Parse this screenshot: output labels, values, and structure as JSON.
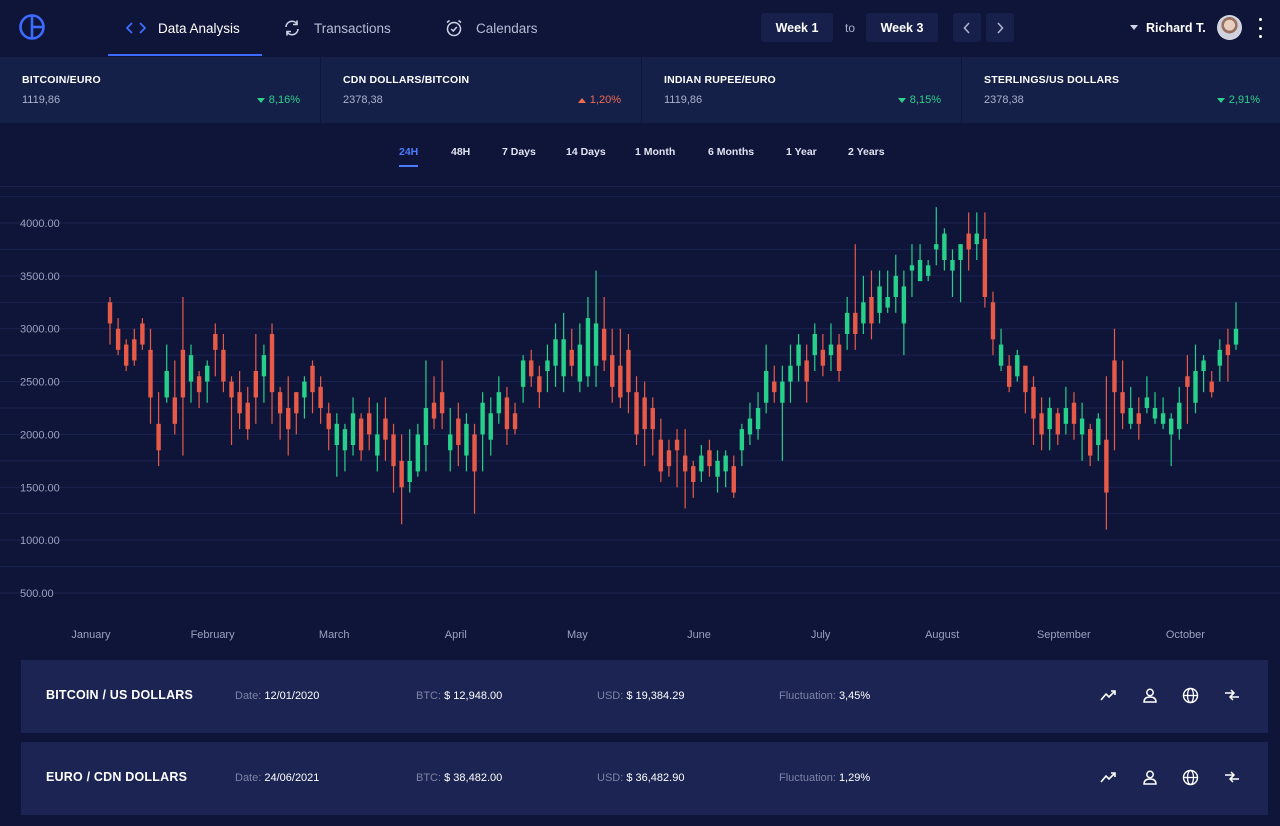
{
  "nav": {
    "tabs": [
      {
        "label": "Data Analysis",
        "icon": "code-icon",
        "active": true
      },
      {
        "label": "Transactions",
        "icon": "refresh-icon",
        "active": false
      },
      {
        "label": "Calendars",
        "icon": "alarm-clock-icon",
        "active": false
      }
    ],
    "week_from": "Week 1",
    "to_label": "to",
    "week_to": "Week 3",
    "user_name": "Richard T."
  },
  "ticker": [
    {
      "pair": "BITCOIN/EURO",
      "value": "1119,86",
      "change": "8,16%",
      "direction": "down",
      "color": "#2ecf8a"
    },
    {
      "pair": "CDN DOLLARS/BITCOIN",
      "value": "2378,38",
      "change": "1,20%",
      "direction": "up",
      "color": "#f06a52"
    },
    {
      "pair": "INDIAN RUPEE/EURO",
      "value": "1119,86",
      "change": "8,15%",
      "direction": "down",
      "color": "#2ecf8a"
    },
    {
      "pair": "STERLINGS/US DOLLARS",
      "value": "2378,38",
      "change": "2,91%",
      "direction": "down",
      "color": "#2ecf8a"
    }
  ],
  "ranges": [
    "24H",
    "48H",
    "7 Days",
    "14 Days",
    "1 Month",
    "6 Months",
    "1 Year",
    "2 Years"
  ],
  "active_range": "24H",
  "chart_data": {
    "type": "candlestick",
    "y_ticks": [
      "4000.00",
      "3500.00",
      "3000.00",
      "2500.00",
      "2000.00",
      "1500.00",
      "1000.00",
      "500.00"
    ],
    "ylim": [
      500,
      4000
    ],
    "x_labels": [
      "January",
      "February",
      "March",
      "April",
      "May",
      "June",
      "July",
      "August",
      "September",
      "October"
    ],
    "up_color": "#26d08a",
    "down_color": "#e85a48",
    "grid": true,
    "candles": [
      [
        3250,
        3050,
        3300,
        2850
      ],
      [
        3000,
        2800,
        3100,
        2750
      ],
      [
        2850,
        2650,
        2900,
        2600
      ],
      [
        2900,
        2700,
        3000,
        2650
      ],
      [
        3050,
        2850,
        3100,
        2800
      ],
      [
        2800,
        2350,
        3000,
        2100
      ],
      [
        2100,
        1850,
        2400,
        1700
      ],
      [
        2350,
        2600,
        2850,
        2300
      ],
      [
        2350,
        2100,
        2700,
        2000
      ],
      [
        2800,
        2350,
        3300,
        1800
      ],
      [
        2500,
        2750,
        2850,
        2300
      ],
      [
        2550,
        2400,
        2600,
        2250
      ],
      [
        2500,
        2650,
        2700,
        2300
      ],
      [
        2950,
        2800,
        3050,
        2550
      ],
      [
        2800,
        2500,
        2950,
        2400
      ],
      [
        2500,
        2350,
        2550,
        1900
      ],
      [
        2400,
        2200,
        2600,
        2050
      ],
      [
        2300,
        2050,
        2450,
        1950
      ],
      [
        2600,
        2350,
        2950,
        2100
      ],
      [
        2550,
        2750,
        2850,
        2300
      ],
      [
        2950,
        2400,
        3050,
        2100
      ],
      [
        2400,
        2200,
        2450,
        1950
      ],
      [
        2250,
        2050,
        2550,
        1800
      ],
      [
        2400,
        2200,
        2400,
        2000
      ],
      [
        2350,
        2500,
        2550,
        2150
      ],
      [
        2650,
        2400,
        2700,
        2200
      ],
      [
        2450,
        2250,
        2550,
        2100
      ],
      [
        2200,
        2050,
        2300,
        1850
      ],
      [
        1900,
        2100,
        2200,
        1600
      ],
      [
        1850,
        2050,
        2100,
        1650
      ],
      [
        1900,
        2200,
        2350,
        1800
      ],
      [
        2150,
        1850,
        2200,
        1750
      ],
      [
        2200,
        2000,
        2350,
        1850
      ],
      [
        1800,
        2000,
        2300,
        1650
      ],
      [
        2150,
        1950,
        2350,
        1750
      ],
      [
        2000,
        1700,
        2100,
        1450
      ],
      [
        1750,
        1500,
        2000,
        1150
      ],
      [
        1550,
        1750,
        2050,
        1450
      ],
      [
        1650,
        2000,
        2100,
        1600
      ],
      [
        1900,
        2250,
        2700,
        1650
      ],
      [
        2300,
        2150,
        2550,
        2050
      ],
      [
        2400,
        2200,
        2700,
        2050
      ],
      [
        1850,
        2000,
        2250,
        1650
      ],
      [
        2150,
        1900,
        2300,
        1700
      ],
      [
        1800,
        2100,
        2200,
        1650
      ],
      [
        2000,
        1650,
        2100,
        1250
      ],
      [
        2000,
        2300,
        2400,
        1650
      ],
      [
        1950,
        2200,
        2350,
        1800
      ],
      [
        2200,
        2400,
        2550,
        2100
      ],
      [
        2350,
        2050,
        2450,
        1900
      ],
      [
        2200,
        2050,
        2300,
        2000
      ],
      [
        2450,
        2700,
        2750,
        2300
      ],
      [
        2700,
        2550,
        2800,
        2450
      ],
      [
        2550,
        2400,
        2650,
        2250
      ],
      [
        2600,
        2700,
        2850,
        2400
      ],
      [
        2650,
        2900,
        3050,
        2450
      ],
      [
        2550,
        2900,
        3150,
        2400
      ],
      [
        2800,
        2650,
        3000,
        2550
      ],
      [
        2500,
        2850,
        3050,
        2400
      ],
      [
        2550,
        3100,
        3300,
        2450
      ],
      [
        2650,
        3050,
        3550,
        2450
      ],
      [
        3000,
        2700,
        3300,
        2600
      ],
      [
        2750,
        2450,
        3000,
        2300
      ],
      [
        2650,
        2350,
        3000,
        2250
      ],
      [
        2800,
        2400,
        2950,
        2200
      ],
      [
        2400,
        2000,
        2550,
        1900
      ],
      [
        2350,
        2050,
        2500,
        1700
      ],
      [
        2250,
        2050,
        2350,
        1800
      ],
      [
        1950,
        1650,
        2150,
        1550
      ],
      [
        1850,
        1700,
        1950,
        1600
      ],
      [
        1950,
        1850,
        2050,
        1500
      ],
      [
        1800,
        1650,
        2050,
        1300
      ],
      [
        1700,
        1550,
        1750,
        1400
      ],
      [
        1650,
        1800,
        1900,
        1550
      ],
      [
        1850,
        1700,
        1950,
        1600
      ],
      [
        1600,
        1750,
        1850,
        1450
      ],
      [
        1650,
        1800,
        1850,
        1500
      ],
      [
        1700,
        1450,
        1800,
        1400
      ],
      [
        1850,
        2050,
        2100,
        1700
      ],
      [
        2000,
        2150,
        2300,
        1900
      ],
      [
        2050,
        2250,
        2400,
        1950
      ],
      [
        2300,
        2600,
        2850,
        2200
      ],
      [
        2500,
        2400,
        2650,
        2300
      ],
      [
        2300,
        2500,
        2650,
        1750
      ],
      [
        2500,
        2650,
        2850,
        2300
      ],
      [
        2650,
        2850,
        2950,
        2500
      ],
      [
        2700,
        2500,
        2850,
        2300
      ],
      [
        2750,
        2950,
        3050,
        2600
      ],
      [
        2800,
        2650,
        2950,
        2550
      ],
      [
        2750,
        2850,
        3050,
        2600
      ],
      [
        2850,
        2600,
        2950,
        2500
      ],
      [
        2950,
        3150,
        3300,
        2800
      ],
      [
        3150,
        2950,
        3800,
        2800
      ],
      [
        3050,
        3250,
        3500,
        2950
      ],
      [
        3300,
        3050,
        3550,
        2900
      ],
      [
        3150,
        3400,
        3550,
        3050
      ],
      [
        3200,
        3300,
        3550,
        3150
      ],
      [
        3300,
        3500,
        3700,
        3150
      ],
      [
        3050,
        3400,
        3550,
        2750
      ],
      [
        3550,
        3600,
        3800,
        3300
      ],
      [
        3450,
        3650,
        3800,
        3450
      ],
      [
        3500,
        3600,
        3650,
        3450
      ],
      [
        3750,
        3800,
        4150,
        3600
      ],
      [
        3650,
        3900,
        3950,
        3550
      ],
      [
        3550,
        3650,
        3750,
        3300
      ],
      [
        3650,
        3800,
        3800,
        3250
      ],
      [
        3900,
        3750,
        4100,
        3550
      ],
      [
        3800,
        3900,
        4100,
        3650
      ],
      [
        3850,
        3300,
        4100,
        3200
      ],
      [
        3250,
        2900,
        3350,
        2750
      ],
      [
        2650,
        2850,
        3000,
        2600
      ],
      [
        2650,
        2450,
        2750,
        2400
      ],
      [
        2550,
        2750,
        2800,
        2500
      ],
      [
        2650,
        2400,
        2650,
        2200
      ],
      [
        2450,
        2150,
        2550,
        1900
      ],
      [
        2200,
        2000,
        2350,
        1850
      ],
      [
        2050,
        2250,
        2350,
        1850
      ],
      [
        2200,
        2000,
        2250,
        1900
      ],
      [
        2100,
        2250,
        2450,
        2000
      ],
      [
        2300,
        2100,
        2400,
        1950
      ],
      [
        2000,
        2150,
        2300,
        1750
      ],
      [
        2050,
        1800,
        2100,
        1700
      ],
      [
        1900,
        2150,
        2200,
        1750
      ],
      [
        1950,
        1450,
        2550,
        1100
      ],
      [
        2700,
        2400,
        3000,
        1850
      ],
      [
        2400,
        2200,
        2700,
        2050
      ],
      [
        2100,
        2250,
        2450,
        2050
      ],
      [
        2200,
        2100,
        2350,
        1950
      ],
      [
        2250,
        2350,
        2550,
        2200
      ],
      [
        2150,
        2250,
        2400,
        2100
      ],
      [
        2100,
        2200,
        2350,
        2050
      ],
      [
        2000,
        2150,
        2200,
        1700
      ],
      [
        2050,
        2300,
        2450,
        1950
      ],
      [
        2550,
        2450,
        2750,
        2100
      ],
      [
        2300,
        2600,
        2850,
        2200
      ],
      [
        2600,
        2700,
        2750,
        2400
      ],
      [
        2500,
        2400,
        2600,
        2350
      ],
      [
        2650,
        2800,
        2900,
        2500
      ],
      [
        2850,
        2750,
        3000,
        2500
      ],
      [
        2850,
        3000,
        3250,
        2800
      ]
    ]
  },
  "cards": [
    {
      "title": "BITCOIN / US DOLLARS",
      "date_label": "Date:",
      "date": "12/01/2020",
      "btc_label": "BTC:",
      "btc": "$ 12,948.00",
      "usd_label": "USD:",
      "usd": "$ 19,384.29",
      "fluct_label": "Fluctuation:",
      "fluct": "3,45%"
    },
    {
      "title": "EURO / CDN DOLLARS",
      "date_label": "Date:",
      "date": "24/06/2021",
      "btc_label": "BTC:",
      "btc": "$ 38,482.00",
      "usd_label": "USD:",
      "usd": "$ 36,482.90",
      "fluct_label": "Fluctuation:",
      "fluct": "1,29%"
    }
  ],
  "card_actions": [
    "trend-icon",
    "user-icon",
    "globe-icon",
    "exchange-icon"
  ]
}
